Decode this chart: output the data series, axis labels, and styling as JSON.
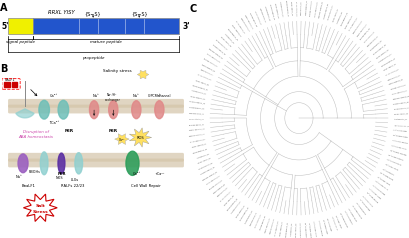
{
  "bg_color": "#ffffff",
  "panel_A_label": "A",
  "panel_B_label": "B",
  "panel_C_label": "C",
  "gene_5prime": "5'",
  "gene_3prime": "3'",
  "gene_blue_label": "RRXL YISY",
  "signal_peptide_label": "signal peptide",
  "mature_peptide_label": "mature peptide",
  "propeptide_label": "propeptide",
  "tree_n_leaves": 130,
  "tree_branch_color": "#bbbbbb",
  "tree_label_color": "#555555",
  "protein_pink": "#e08888",
  "protein_teal": "#6dbfb8",
  "protein_teal2": "#90d0d0",
  "protein_purple": "#9b5fc0",
  "protein_purple2": "#5b2fa3",
  "protein_green": "#2e9e5b",
  "membrane_color": "#d4c4a8",
  "ralf_red": "#cc0000",
  "disruption_color": "#cc44aa",
  "salt_stress_color": "#cc0000",
  "yellow_gene": "#f0f000",
  "blue_gene": "#2255cc",
  "ros_color": "#ffe060",
  "group_sizes": [
    18,
    15,
    12,
    10,
    14,
    16,
    13,
    12,
    10,
    10
  ]
}
